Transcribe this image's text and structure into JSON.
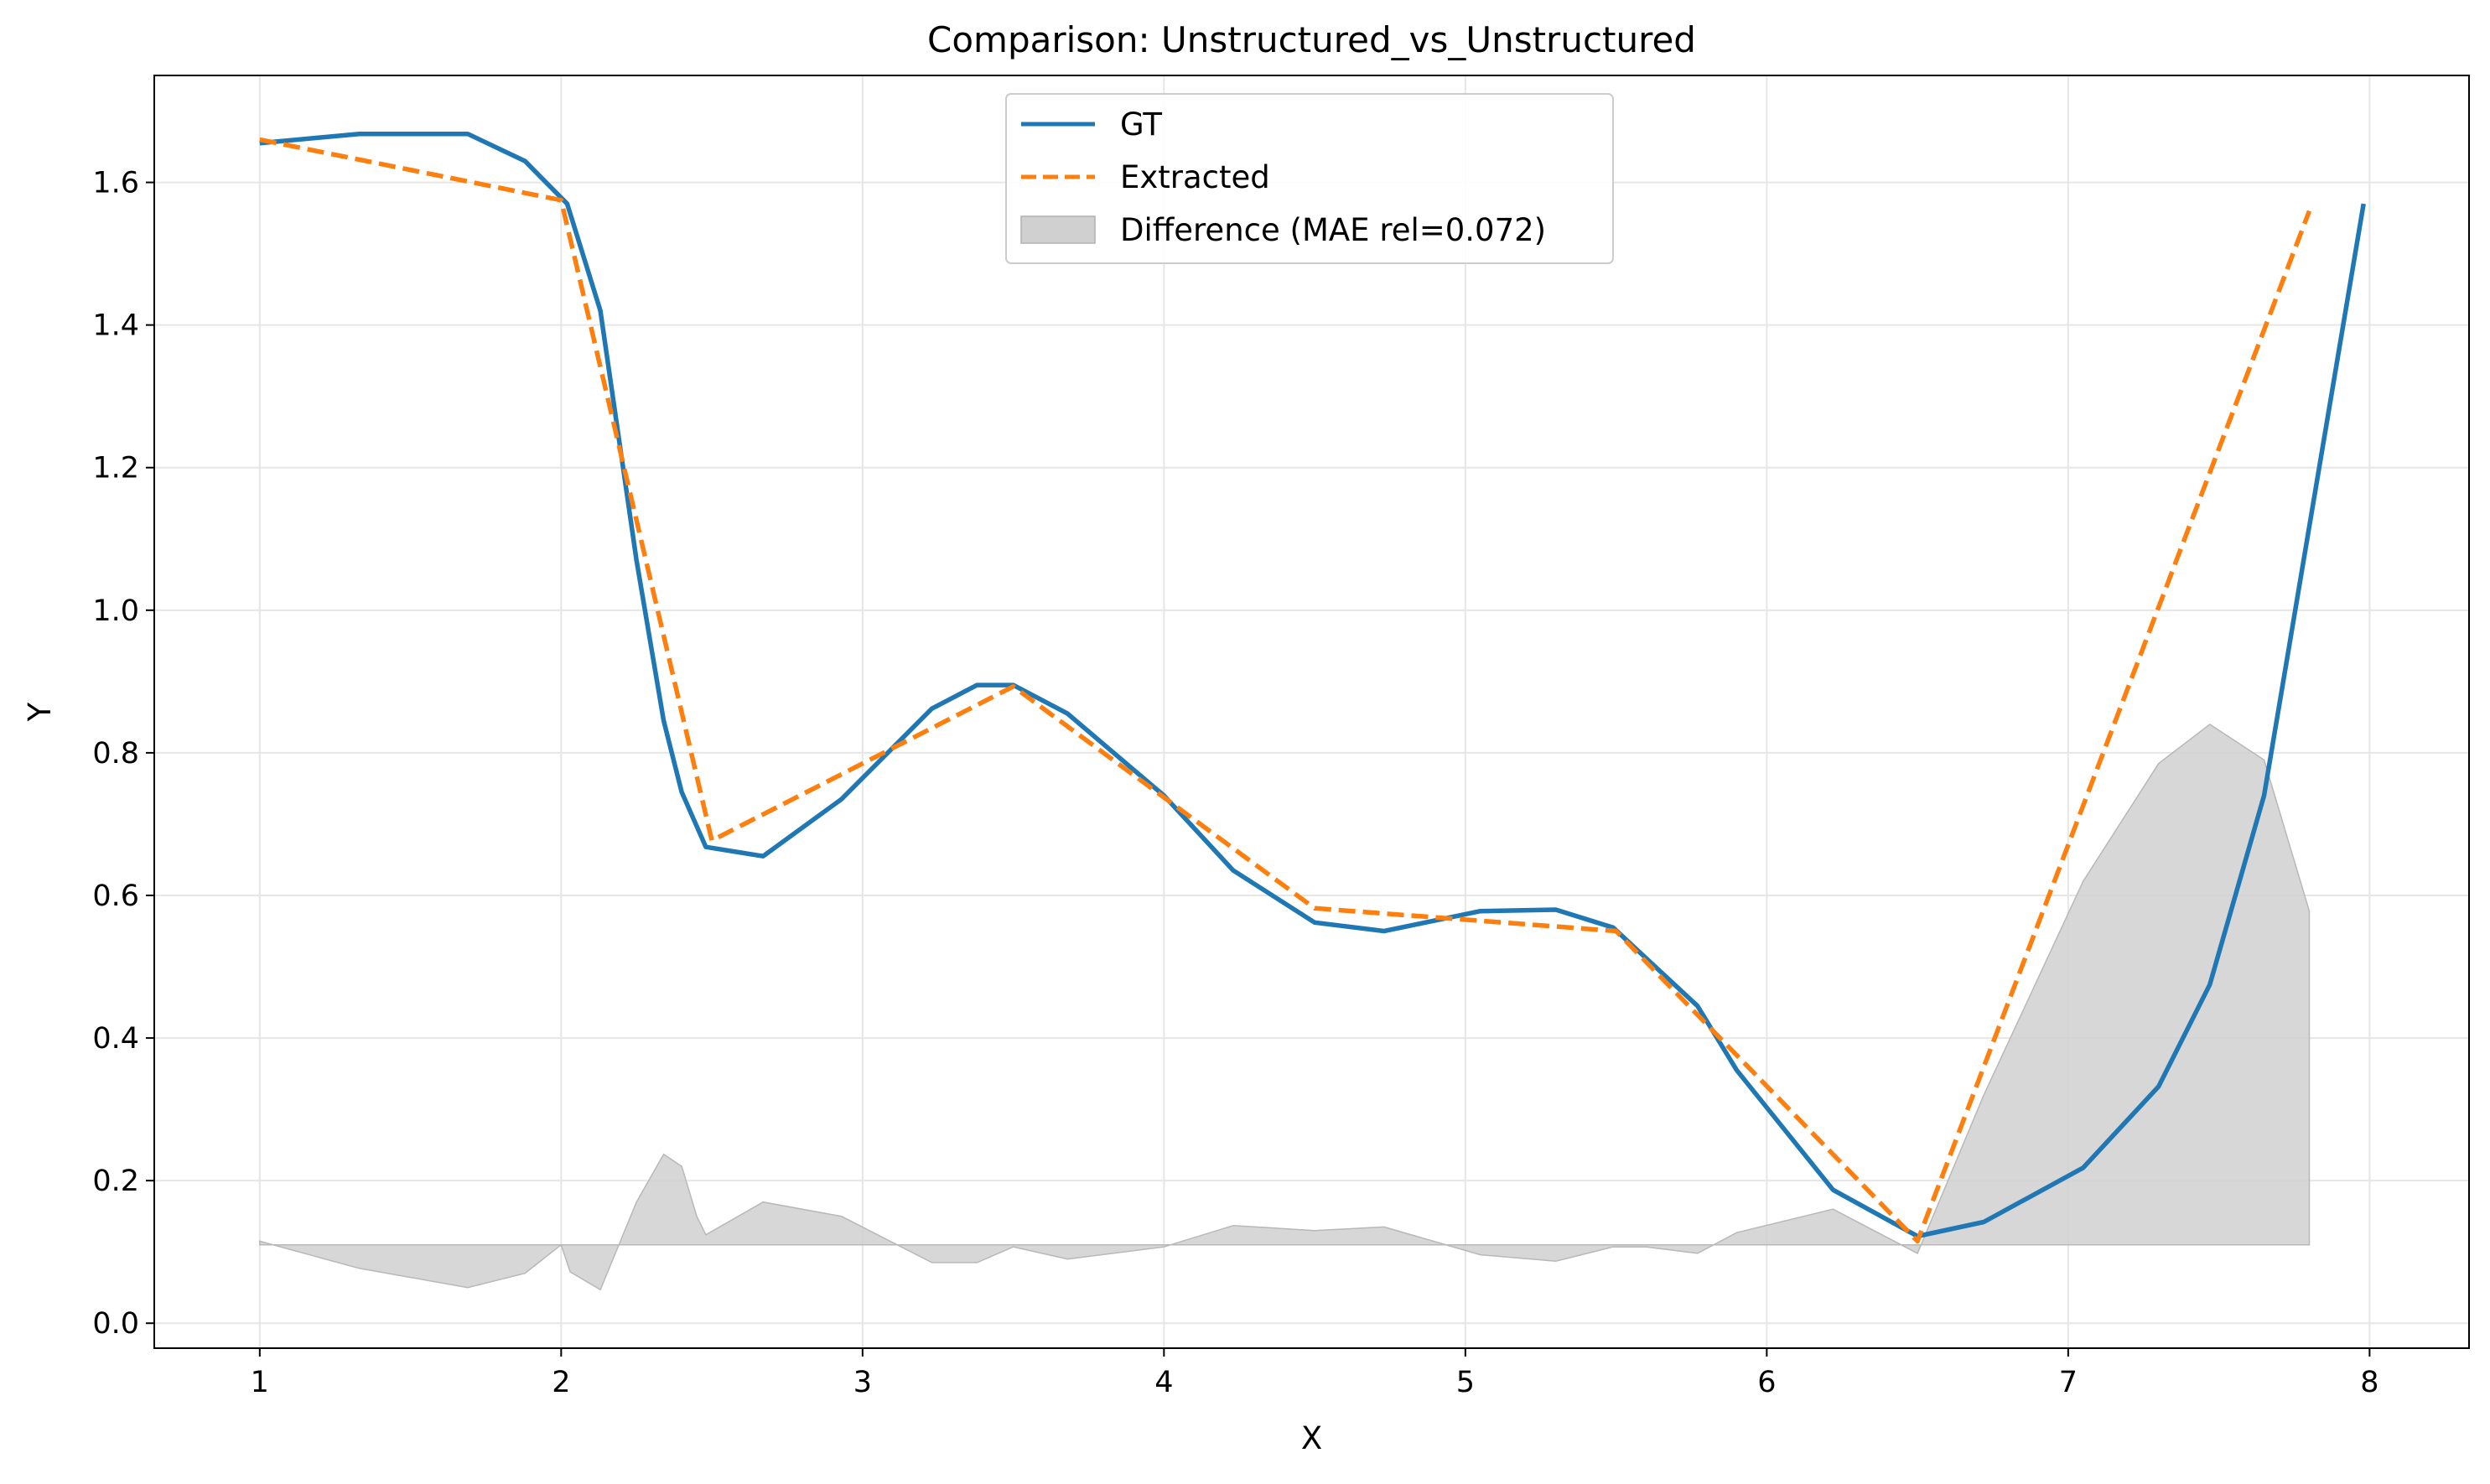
{
  "chart_data": {
    "type": "line",
    "title": "Comparison: Unstructured_vs_Unstructured",
    "xlabel": "X",
    "ylabel": "Y",
    "xlim": [
      0.65,
      8.33
    ],
    "ylim": [
      -0.035,
      1.75
    ],
    "xticks": [
      1,
      2,
      3,
      4,
      5,
      6,
      7,
      8
    ],
    "yticks": [
      0.0,
      0.2,
      0.4,
      0.6,
      0.8,
      1.0,
      1.2,
      1.4,
      1.6
    ],
    "xtick_labels": [
      "1",
      "2",
      "3",
      "4",
      "5",
      "6",
      "7",
      "8"
    ],
    "ytick_labels": [
      "0.0",
      "0.2",
      "0.4",
      "0.6",
      "0.8",
      "1.0",
      "1.2",
      "1.4",
      "1.6"
    ],
    "grid": true,
    "legend_position": "top-center",
    "series": [
      {
        "name": "GT",
        "style": "solid",
        "color": "#1f77b4",
        "x": [
          1.0,
          1.33,
          1.69,
          1.88,
          2.02,
          2.13,
          2.25,
          2.34,
          2.4,
          2.48,
          2.67,
          2.93,
          3.23,
          3.38,
          3.5,
          3.68,
          4.0,
          4.23,
          4.5,
          4.73,
          5.05,
          5.3,
          5.49,
          5.77,
          5.9,
          6.22,
          6.5,
          6.72,
          7.05,
          7.3,
          7.47,
          7.65,
          7.98
        ],
        "y": [
          1.655,
          1.668,
          1.668,
          1.63,
          1.57,
          1.42,
          1.07,
          0.845,
          0.745,
          0.668,
          0.655,
          0.735,
          0.862,
          0.895,
          0.895,
          0.855,
          0.74,
          0.635,
          0.562,
          0.55,
          0.578,
          0.58,
          0.555,
          0.445,
          0.355,
          0.187,
          0.122,
          0.142,
          0.218,
          0.332,
          0.475,
          0.74,
          1.57
        ]
      },
      {
        "name": "Extracted",
        "style": "dashed",
        "color": "#ff7f0e",
        "x": [
          1.0,
          2.0,
          2.5,
          3.5,
          4.5,
          5.5,
          6.5,
          7.8
        ],
        "y": [
          1.66,
          1.575,
          0.677,
          0.893,
          0.582,
          0.55,
          0.115,
          1.56
        ]
      }
    ],
    "difference": {
      "name": "Difference (MAE rel=0.072)",
      "color": "#d0d0d0",
      "baseline": 0.11,
      "x": [
        1.0,
        1.33,
        1.69,
        1.88,
        2.0,
        2.03,
        2.13,
        2.25,
        2.34,
        2.4,
        2.45,
        2.48,
        2.67,
        2.93,
        3.23,
        3.38,
        3.5,
        3.68,
        4.0,
        4.23,
        4.5,
        4.73,
        5.05,
        5.3,
        5.49,
        5.6,
        5.77,
        5.9,
        6.22,
        6.5,
        6.72,
        7.05,
        7.3,
        7.47,
        7.65,
        7.8
      ],
      "y": [
        0.115,
        0.077,
        0.05,
        0.07,
        0.11,
        0.072,
        0.047,
        0.17,
        0.237,
        0.22,
        0.15,
        0.124,
        0.17,
        0.15,
        0.085,
        0.085,
        0.107,
        0.09,
        0.107,
        0.137,
        0.13,
        0.135,
        0.096,
        0.087,
        0.107,
        0.107,
        0.098,
        0.127,
        0.16,
        0.098,
        0.32,
        0.62,
        0.785,
        0.84,
        0.79,
        0.578
      ]
    }
  }
}
